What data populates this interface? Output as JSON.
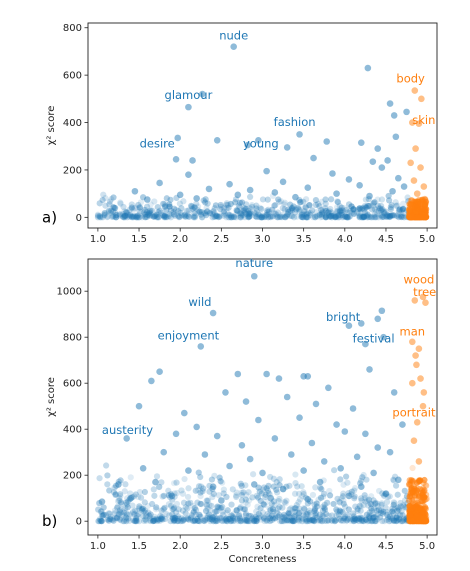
{
  "chart_data": [
    {
      "type": "scatter",
      "panel_label": "a)",
      "xlabel": "",
      "ylabel": "χ² score",
      "xlim": [
        0.88,
        5.12
      ],
      "ylim": [
        -45,
        820
      ],
      "xticks": [
        "1.0",
        "1.5",
        "2.0",
        "2.5",
        "3.0",
        "3.5",
        "4.0",
        "4.5",
        "5.0"
      ],
      "yticks": [
        "0",
        "200",
        "400",
        "600",
        "800"
      ],
      "grid": false,
      "colors": {
        "abstract": "#1f77b4",
        "concrete": "#ff7f0e"
      },
      "concreteness_threshold": 4.78,
      "points": [
        {
          "x": 2.65,
          "y": 720
        },
        {
          "x": 4.28,
          "y": 630
        },
        {
          "x": 4.85,
          "y": 535
        },
        {
          "x": 4.93,
          "y": 500
        },
        {
          "x": 2.27,
          "y": 520
        },
        {
          "x": 2.1,
          "y": 465
        },
        {
          "x": 4.55,
          "y": 480
        },
        {
          "x": 4.6,
          "y": 430
        },
        {
          "x": 4.75,
          "y": 445
        },
        {
          "x": 4.82,
          "y": 400
        },
        {
          "x": 4.9,
          "y": 395
        },
        {
          "x": 3.45,
          "y": 350
        },
        {
          "x": 1.97,
          "y": 335
        },
        {
          "x": 2.45,
          "y": 325
        },
        {
          "x": 2.95,
          "y": 325
        },
        {
          "x": 3.78,
          "y": 320
        },
        {
          "x": 4.2,
          "y": 315
        },
        {
          "x": 4.62,
          "y": 340
        },
        {
          "x": 2.82,
          "y": 305
        },
        {
          "x": 3.3,
          "y": 295
        },
        {
          "x": 4.4,
          "y": 290
        },
        {
          "x": 4.52,
          "y": 240
        },
        {
          "x": 4.86,
          "y": 290
        },
        {
          "x": 1.95,
          "y": 245
        },
        {
          "x": 2.15,
          "y": 240
        },
        {
          "x": 3.62,
          "y": 250
        },
        {
          "x": 4.34,
          "y": 235
        },
        {
          "x": 2.1,
          "y": 180
        },
        {
          "x": 3.05,
          "y": 195
        },
        {
          "x": 3.85,
          "y": 185
        },
        {
          "x": 4.45,
          "y": 210
        },
        {
          "x": 4.8,
          "y": 230
        },
        {
          "x": 4.92,
          "y": 210
        },
        {
          "x": 1.75,
          "y": 145
        },
        {
          "x": 2.6,
          "y": 140
        },
        {
          "x": 3.25,
          "y": 150
        },
        {
          "x": 4.05,
          "y": 160
        },
        {
          "x": 4.65,
          "y": 165
        },
        {
          "x": 1.45,
          "y": 110
        },
        {
          "x": 2.35,
          "y": 120
        },
        {
          "x": 2.85,
          "y": 115
        },
        {
          "x": 3.55,
          "y": 125
        },
        {
          "x": 4.18,
          "y": 135
        },
        {
          "x": 4.72,
          "y": 130
        },
        {
          "x": 4.84,
          "y": 155
        },
        {
          "x": 2.0,
          "y": 95
        },
        {
          "x": 2.7,
          "y": 95
        },
        {
          "x": 3.15,
          "y": 105
        },
        {
          "x": 3.9,
          "y": 100
        },
        {
          "x": 4.58,
          "y": 110
        },
        {
          "x": 1.6,
          "y": 75
        },
        {
          "x": 2.2,
          "y": 80
        },
        {
          "x": 3.4,
          "y": 85
        },
        {
          "x": 4.3,
          "y": 90
        },
        {
          "x": 4.88,
          "y": 100
        },
        {
          "x": 4.96,
          "y": 130
        }
      ],
      "labels": [
        {
          "text": "nude",
          "x": 2.65,
          "y": 750,
          "color": "#1f77b4"
        },
        {
          "text": "glamour",
          "x": 2.1,
          "y": 500,
          "color": "#1f77b4"
        },
        {
          "text": "fashion",
          "x": 3.39,
          "y": 385,
          "color": "#1f77b4"
        },
        {
          "text": "desire",
          "x": 1.72,
          "y": 295,
          "color": "#1f77b4"
        },
        {
          "text": "young",
          "x": 2.98,
          "y": 295,
          "color": "#1f77b4"
        },
        {
          "text": "body",
          "x": 4.8,
          "y": 568,
          "color": "#ff7f0e"
        },
        {
          "text": "skin",
          "x": 4.96,
          "y": 393,
          "color": "#ff7f0e"
        }
      ]
    },
    {
      "type": "scatter",
      "panel_label": "b)",
      "xlabel": "Concreteness",
      "ylabel": "χ² score",
      "xlim": [
        0.88,
        5.12
      ],
      "ylim": [
        -60,
        1140
      ],
      "xticks": [
        "1.0",
        "1.5",
        "2.0",
        "2.5",
        "3.0",
        "3.5",
        "4.0",
        "4.5",
        "5.0"
      ],
      "yticks": [
        "0",
        "200",
        "400",
        "600",
        "800",
        "1000"
      ],
      "grid": false,
      "colors": {
        "abstract": "#1f77b4",
        "concrete": "#ff7f0e"
      },
      "concreteness_threshold": 4.78,
      "points": [
        {
          "x": 2.9,
          "y": 1065
        },
        {
          "x": 4.95,
          "y": 975
        },
        {
          "x": 4.85,
          "y": 960
        },
        {
          "x": 4.98,
          "y": 950
        },
        {
          "x": 2.4,
          "y": 905
        },
        {
          "x": 4.45,
          "y": 915
        },
        {
          "x": 4.4,
          "y": 880
        },
        {
          "x": 4.2,
          "y": 860
        },
        {
          "x": 4.05,
          "y": 850
        },
        {
          "x": 4.82,
          "y": 780
        },
        {
          "x": 4.9,
          "y": 750
        },
        {
          "x": 2.25,
          "y": 760
        },
        {
          "x": 4.47,
          "y": 800
        },
        {
          "x": 4.25,
          "y": 770
        },
        {
          "x": 3.05,
          "y": 640
        },
        {
          "x": 3.5,
          "y": 630
        },
        {
          "x": 3.55,
          "y": 630
        },
        {
          "x": 1.75,
          "y": 650
        },
        {
          "x": 2.7,
          "y": 640
        },
        {
          "x": 4.3,
          "y": 660
        },
        {
          "x": 4.87,
          "y": 680
        },
        {
          "x": 4.92,
          "y": 620
        },
        {
          "x": 1.65,
          "y": 610
        },
        {
          "x": 3.2,
          "y": 620
        },
        {
          "x": 3.8,
          "y": 580
        },
        {
          "x": 2.05,
          "y": 470
        },
        {
          "x": 2.55,
          "y": 560
        },
        {
          "x": 2.8,
          "y": 520
        },
        {
          "x": 3.3,
          "y": 540
        },
        {
          "x": 3.65,
          "y": 510
        },
        {
          "x": 4.1,
          "y": 490
        },
        {
          "x": 4.6,
          "y": 560
        },
        {
          "x": 4.88,
          "y": 430
        },
        {
          "x": 4.95,
          "y": 500
        },
        {
          "x": 1.5,
          "y": 500
        },
        {
          "x": 2.2,
          "y": 410
        },
        {
          "x": 2.95,
          "y": 440
        },
        {
          "x": 3.45,
          "y": 450
        },
        {
          "x": 3.9,
          "y": 420
        },
        {
          "x": 4.25,
          "y": 380
        },
        {
          "x": 4.7,
          "y": 420
        },
        {
          "x": 1.35,
          "y": 360
        },
        {
          "x": 1.95,
          "y": 380
        },
        {
          "x": 2.45,
          "y": 370
        },
        {
          "x": 2.75,
          "y": 330
        },
        {
          "x": 3.15,
          "y": 360
        },
        {
          "x": 3.6,
          "y": 340
        },
        {
          "x": 4.0,
          "y": 390
        },
        {
          "x": 4.4,
          "y": 320
        },
        {
          "x": 4.84,
          "y": 350
        },
        {
          "x": 1.8,
          "y": 300
        },
        {
          "x": 2.3,
          "y": 290
        },
        {
          "x": 2.85,
          "y": 270
        },
        {
          "x": 3.35,
          "y": 290
        },
        {
          "x": 3.75,
          "y": 260
        },
        {
          "x": 4.15,
          "y": 280
        },
        {
          "x": 4.55,
          "y": 300
        },
        {
          "x": 1.55,
          "y": 230
        },
        {
          "x": 2.1,
          "y": 220
        },
        {
          "x": 2.6,
          "y": 240
        },
        {
          "x": 3.0,
          "y": 210
        },
        {
          "x": 3.5,
          "y": 220
        },
        {
          "x": 3.95,
          "y": 230
        },
        {
          "x": 4.35,
          "y": 210
        },
        {
          "x": 4.9,
          "y": 260
        },
        {
          "x": 1.25,
          "y": 160
        },
        {
          "x": 1.7,
          "y": 170
        },
        {
          "x": 2.4,
          "y": 150
        },
        {
          "x": 2.9,
          "y": 160
        },
        {
          "x": 3.25,
          "y": 140
        },
        {
          "x": 3.7,
          "y": 170
        },
        {
          "x": 4.2,
          "y": 150
        },
        {
          "x": 4.65,
          "y": 180
        },
        {
          "x": 1.4,
          "y": 100
        },
        {
          "x": 1.9,
          "y": 110
        },
        {
          "x": 2.5,
          "y": 90
        },
        {
          "x": 3.1,
          "y": 100
        },
        {
          "x": 3.55,
          "y": 95
        },
        {
          "x": 4.05,
          "y": 110
        },
        {
          "x": 4.5,
          "y": 120
        },
        {
          "x": 1.05,
          "y": 85
        },
        {
          "x": 4.96,
          "y": 560
        },
        {
          "x": 4.82,
          "y": 600
        },
        {
          "x": 4.86,
          "y": 720
        }
      ],
      "labels": [
        {
          "text": "nature",
          "x": 2.9,
          "y": 1105,
          "color": "#1f77b4"
        },
        {
          "text": "wild",
          "x": 2.24,
          "y": 935,
          "color": "#1f77b4"
        },
        {
          "text": "enjoyment",
          "x": 2.1,
          "y": 790,
          "color": "#1f77b4"
        },
        {
          "text": "bright",
          "x": 3.98,
          "y": 870,
          "color": "#1f77b4"
        },
        {
          "text": "festival",
          "x": 4.35,
          "y": 777,
          "color": "#1f77b4"
        },
        {
          "text": "austerity",
          "x": 1.36,
          "y": 380,
          "color": "#1f77b4"
        },
        {
          "text": "wood",
          "x": 4.9,
          "y": 1033,
          "color": "#ff7f0e"
        },
        {
          "text": "tree",
          "x": 4.97,
          "y": 980,
          "color": "#ff7f0e"
        },
        {
          "text": "man",
          "x": 4.82,
          "y": 808,
          "color": "#ff7f0e"
        },
        {
          "text": "portrait",
          "x": 4.84,
          "y": 455,
          "color": "#ff7f0e"
        }
      ]
    }
  ]
}
